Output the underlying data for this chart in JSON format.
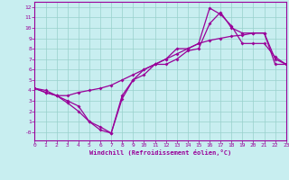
{
  "xlabel": "Windchill (Refroidissement éolien,°C)",
  "bg_color": "#c8eef0",
  "grid_color": "#98d0cc",
  "line_color": "#990099",
  "xlim": [
    0,
    23
  ],
  "ylim": [
    -0.8,
    12.5
  ],
  "xticks": [
    0,
    1,
    2,
    3,
    4,
    5,
    6,
    7,
    8,
    9,
    10,
    11,
    12,
    13,
    14,
    15,
    16,
    17,
    18,
    19,
    20,
    21,
    22,
    23
  ],
  "ytick_vals": [
    0,
    1,
    2,
    3,
    4,
    5,
    6,
    7,
    8,
    9,
    10,
    11,
    12
  ],
  "ytick_labels": [
    "-0",
    "1",
    "2",
    "3",
    "4",
    "5",
    "6",
    "7",
    "8",
    "9",
    "10",
    "11",
    "12"
  ],
  "line1_x": [
    0,
    1,
    2,
    3,
    4,
    5,
    6,
    7,
    8,
    9,
    10,
    11,
    12,
    13,
    14,
    15,
    16,
    17,
    18,
    19,
    20,
    21,
    22,
    23
  ],
  "line1_y": [
    4.2,
    4.0,
    3.5,
    3.5,
    3.8,
    4.0,
    4.2,
    4.5,
    5.0,
    5.5,
    6.0,
    6.5,
    7.0,
    7.5,
    8.0,
    8.5,
    8.8,
    9.0,
    9.2,
    9.3,
    9.5,
    9.5,
    6.5,
    6.5
  ],
  "line2_x": [
    0,
    1,
    2,
    3,
    4,
    5,
    6,
    7,
    8,
    9,
    10,
    11,
    12,
    13,
    14,
    15,
    16,
    17,
    18,
    19,
    20,
    21,
    22,
    23
  ],
  "line2_y": [
    4.2,
    3.8,
    3.5,
    3.0,
    2.5,
    1.0,
    0.5,
    -0.1,
    3.2,
    5.0,
    6.0,
    6.5,
    6.5,
    7.0,
    7.8,
    8.0,
    10.4,
    11.5,
    10.0,
    9.5,
    9.5,
    9.5,
    7.0,
    6.5
  ],
  "line3_x": [
    0,
    1,
    2,
    3,
    4,
    5,
    6,
    7,
    8,
    9,
    10,
    11,
    12,
    13,
    14,
    15,
    16,
    17,
    18,
    19,
    20,
    21,
    22,
    23
  ],
  "line3_y": [
    4.2,
    3.8,
    3.5,
    2.8,
    2.0,
    1.0,
    0.2,
    -0.1,
    3.5,
    5.0,
    5.5,
    6.5,
    7.0,
    8.0,
    8.0,
    8.5,
    11.9,
    11.3,
    10.2,
    8.5,
    8.5,
    8.5,
    7.2,
    6.5
  ]
}
